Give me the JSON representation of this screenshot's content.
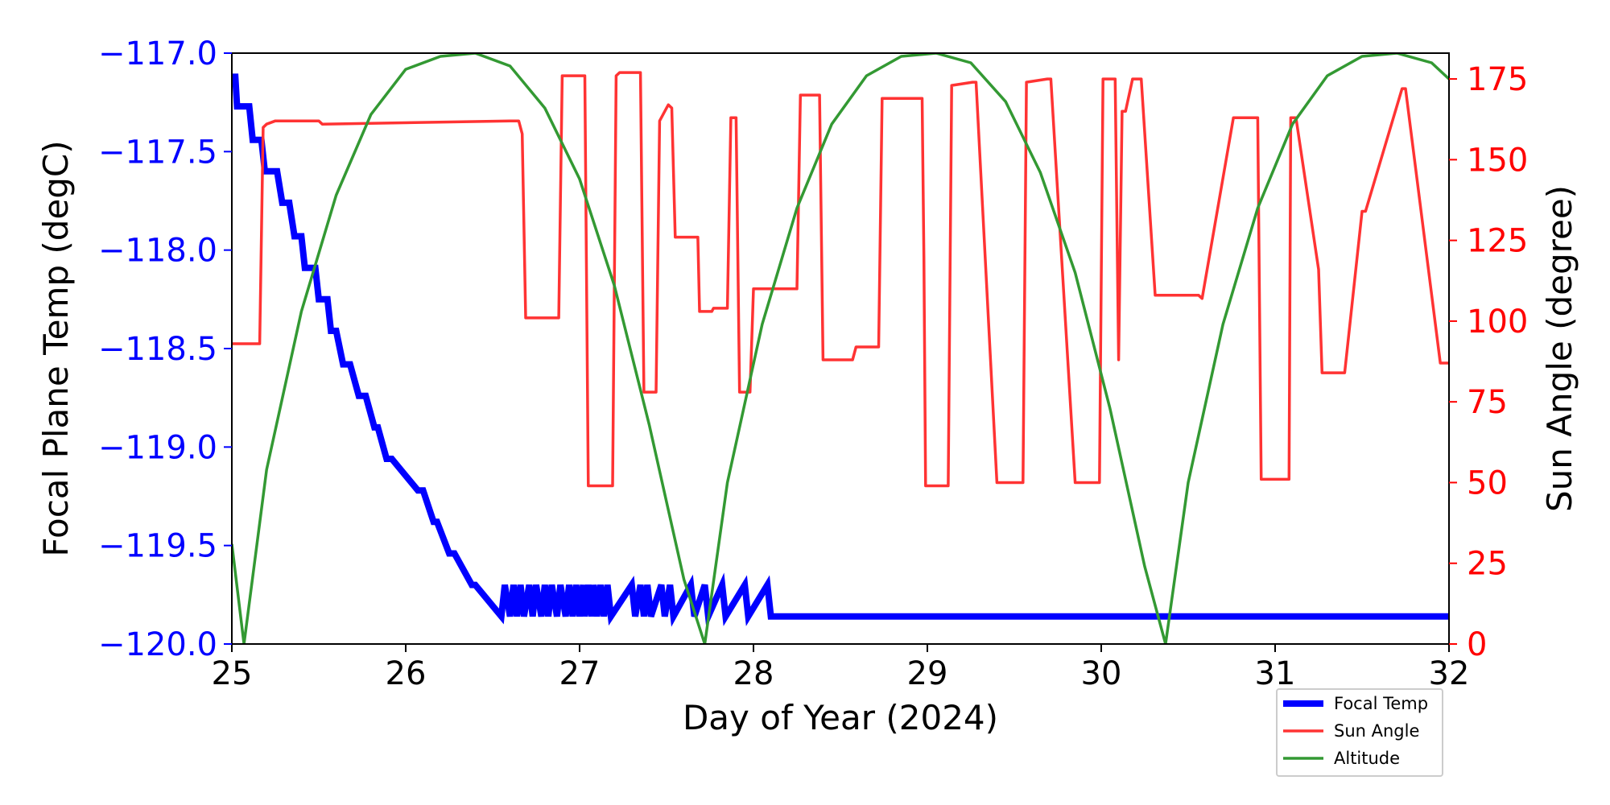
{
  "chart_data": {
    "type": "line",
    "xlabel": "Day of Year (2024)",
    "ylabel_left": "Focal Plane Temp (degC)",
    "ylabel_right": "Sun Angle (degree)",
    "xlim": [
      25,
      32
    ],
    "ylim_left": [
      -120.0,
      -117.0
    ],
    "ylim_right": [
      0,
      183
    ],
    "x_ticks": [
      "25",
      "26",
      "27",
      "28",
      "29",
      "30",
      "31",
      "32"
    ],
    "y_left_ticks": [
      "−117.0",
      "−117.5",
      "−118.0",
      "−118.5",
      "−119.0",
      "−119.5",
      "−120.0"
    ],
    "y_right_ticks": [
      "175",
      "150",
      "125",
      "100",
      "75",
      "50",
      "25",
      "0"
    ],
    "colors": {
      "focal": "#0000ff",
      "sun": "#ff3333",
      "altitude": "#339933",
      "left_axis": "#0000ff",
      "right_axis": "#ff0000"
    },
    "legend": [
      "Focal Temp",
      "Sun Angle",
      "Altitude"
    ],
    "legend_position": "bottom-right, outside plot",
    "series": [
      {
        "name": "Focal Temp",
        "axis": "left",
        "x": [
          25.0,
          25.02,
          25.03,
          25.1,
          25.12,
          25.17,
          25.19,
          25.26,
          25.29,
          25.33,
          25.36,
          25.4,
          25.42,
          25.48,
          25.5,
          25.55,
          25.57,
          25.6,
          25.64,
          25.68,
          25.73,
          25.77,
          25.82,
          25.84,
          25.89,
          25.92,
          26.07,
          26.1,
          26.16,
          26.18,
          26.25,
          26.28,
          26.38,
          26.4,
          26.55,
          26.57,
          26.6,
          26.62,
          26.64,
          26.66,
          26.68,
          26.71,
          26.73,
          26.75,
          26.78,
          26.8,
          26.82,
          26.84,
          26.87,
          26.89,
          26.92,
          26.94,
          26.96,
          26.98,
          27.0,
          27.02,
          27.03,
          27.05,
          27.07,
          27.08,
          27.1,
          27.12,
          27.14,
          27.16,
          27.18,
          27.3,
          27.32,
          27.35,
          27.37,
          27.39,
          27.41,
          27.47,
          27.49,
          27.52,
          27.54,
          27.64,
          27.66,
          27.72,
          27.74,
          27.82,
          27.84,
          27.95,
          27.97,
          28.08,
          28.1,
          32.0
        ],
        "y": [
          -117.12,
          -117.12,
          -117.27,
          -117.27,
          -117.44,
          -117.44,
          -117.6,
          -117.6,
          -117.76,
          -117.76,
          -117.93,
          -117.93,
          -118.09,
          -118.09,
          -118.25,
          -118.25,
          -118.41,
          -118.41,
          -118.58,
          -118.58,
          -118.74,
          -118.74,
          -118.9,
          -118.9,
          -119.06,
          -119.06,
          -119.22,
          -119.22,
          -119.38,
          -119.38,
          -119.54,
          -119.54,
          -119.7,
          -119.7,
          -119.86,
          -119.7,
          -119.86,
          -119.7,
          -119.86,
          -119.7,
          -119.86,
          -119.7,
          -119.86,
          -119.7,
          -119.86,
          -119.7,
          -119.86,
          -119.7,
          -119.86,
          -119.7,
          -119.86,
          -119.7,
          -119.86,
          -119.7,
          -119.86,
          -119.7,
          -119.86,
          -119.7,
          -119.86,
          -119.7,
          -119.86,
          -119.7,
          -119.86,
          -119.7,
          -119.86,
          -119.7,
          -119.86,
          -119.7,
          -119.86,
          -119.7,
          -119.86,
          -119.7,
          -119.86,
          -119.7,
          -119.86,
          -119.7,
          -119.86,
          -119.7,
          -119.86,
          -119.7,
          -119.86,
          -119.7,
          -119.86,
          -119.7,
          -119.86,
          -119.86
        ]
      },
      {
        "name": "Sun Angle",
        "axis": "right",
        "x": [
          25.0,
          25.13,
          25.16,
          25.18,
          25.2,
          25.25,
          25.5,
          25.52,
          26.6,
          26.65,
          26.67,
          26.69,
          26.88,
          26.9,
          26.92,
          27.03,
          27.05,
          27.07,
          27.19,
          27.21,
          27.23,
          27.35,
          27.37,
          27.39,
          27.44,
          27.46,
          27.48,
          27.5,
          27.51,
          27.53,
          27.55,
          27.68,
          27.69,
          27.76,
          27.77,
          27.85,
          27.87,
          27.9,
          27.92,
          27.97,
          27.98,
          28.0,
          28.25,
          28.27,
          28.38,
          28.4,
          28.57,
          28.59,
          28.72,
          28.74,
          28.86,
          28.87,
          28.97,
          28.98,
          28.99,
          29.0,
          29.12,
          29.14,
          29.26,
          29.28,
          29.4,
          29.42,
          29.55,
          29.57,
          29.69,
          29.71,
          29.85,
          29.87,
          29.99,
          30.01,
          30.08,
          30.1,
          30.12,
          30.14,
          30.18,
          30.21,
          30.23,
          30.31,
          30.33,
          30.56,
          30.58,
          30.76,
          30.78,
          30.9,
          30.92,
          31.08,
          31.09,
          31.1,
          31.12,
          31.25,
          31.27,
          31.38,
          31.4,
          31.5,
          31.52,
          31.73,
          31.75,
          31.95,
          31.97,
          32.0
        ],
        "y": [
          93,
          93,
          93,
          160,
          161,
          162,
          162,
          161,
          162,
          162,
          158,
          101,
          101,
          176,
          176,
          176,
          49,
          49,
          49,
          176,
          177,
          177,
          78,
          78,
          78,
          162,
          164,
          166,
          167,
          166,
          126,
          126,
          103,
          103,
          104,
          104,
          163,
          163,
          78,
          78,
          78,
          110,
          110,
          170,
          170,
          88,
          88,
          92,
          92,
          169,
          169,
          169,
          169,
          120,
          49,
          49,
          49,
          173,
          174,
          174,
          50,
          50,
          50,
          174,
          175,
          175,
          50,
          50,
          50,
          175,
          175,
          88,
          165,
          165,
          175,
          175,
          175,
          108,
          108,
          108,
          107,
          163,
          163,
          163,
          51,
          51,
          163,
          163,
          163,
          116,
          84,
          84,
          84,
          134,
          134,
          172,
          172,
          87,
          87,
          87
        ]
      },
      {
        "name": "Altitude",
        "axis": "right",
        "perigee_x": [
          25.07,
          27.72,
          30.37
        ],
        "apogee_x": [
          26.4,
          29.05,
          31.7
        ],
        "x": [
          25.0,
          25.07,
          25.2,
          25.4,
          25.6,
          25.8,
          26.0,
          26.2,
          26.4,
          26.6,
          26.8,
          27.0,
          27.2,
          27.4,
          27.6,
          27.72,
          27.85,
          28.05,
          28.25,
          28.45,
          28.65,
          28.85,
          29.05,
          29.25,
          29.45,
          29.65,
          29.85,
          30.05,
          30.25,
          30.37,
          30.5,
          30.7,
          30.9,
          31.1,
          31.3,
          31.5,
          31.7,
          31.9,
          32.0
        ],
        "y": [
          31,
          0,
          54,
          103,
          139,
          164,
          178,
          182,
          183,
          179,
          166,
          144,
          111,
          68,
          20,
          0,
          50,
          99,
          135,
          161,
          176,
          182,
          183,
          180,
          168,
          146,
          115,
          73,
          24,
          0,
          50,
          99,
          135,
          161,
          176,
          182,
          183,
          180,
          175
        ]
      }
    ]
  }
}
